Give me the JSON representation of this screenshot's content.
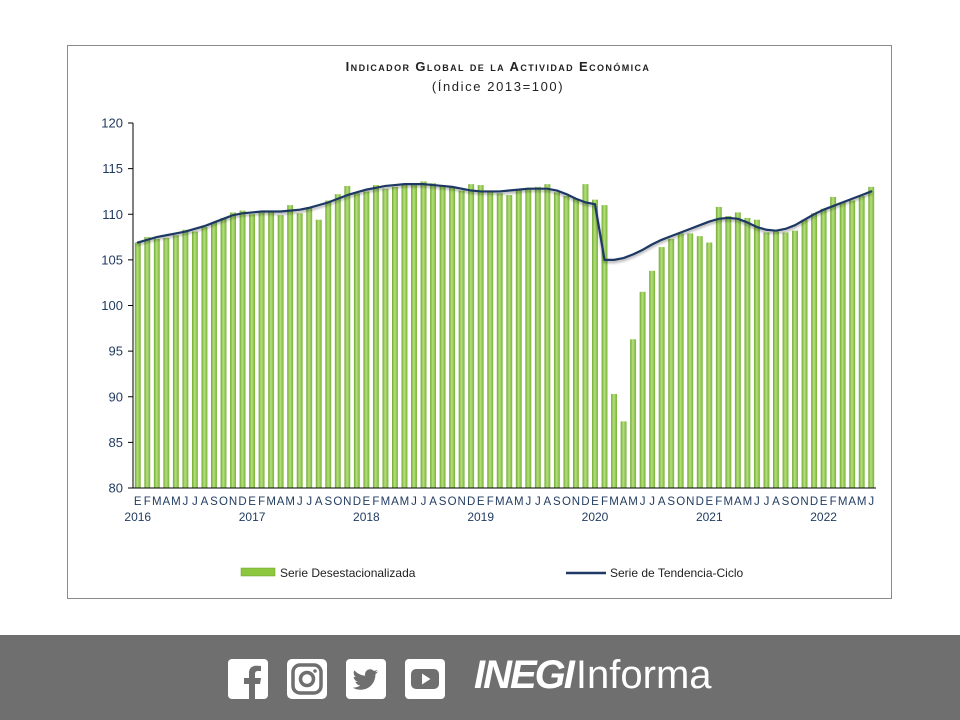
{
  "chart_data": {
    "type": "bar",
    "title": "Indicador Global de la Actividad Económica",
    "subtitle": "(Índice 2013=100)",
    "ylim": [
      80,
      120
    ],
    "yticks": [
      80,
      85,
      90,
      95,
      100,
      105,
      110,
      115,
      120
    ],
    "month_labels": [
      "E",
      "F",
      "M",
      "A",
      "M",
      "J",
      "J",
      "A",
      "S",
      "O",
      "N",
      "D"
    ],
    "years": [
      "2016",
      "2017",
      "2018",
      "2019",
      "2020",
      "2021",
      "2022"
    ],
    "legend": {
      "bar_series": "Serie Desestacionalizada",
      "line_series": "Serie de Tendencia-Ciclo",
      "placement": "bottom"
    },
    "series": [
      {
        "name": "Serie Desestacionalizada",
        "type": "bar",
        "color": "#8dc63f",
        "values": [
          106.9,
          107.5,
          107.3,
          107.4,
          107.7,
          108.3,
          108.1,
          108.6,
          109.1,
          109.6,
          110.2,
          110.4,
          110.0,
          110.3,
          110.4,
          109.9,
          111.0,
          110.1,
          110.8,
          109.4,
          111.5,
          112.2,
          113.1,
          112.3,
          112.5,
          113.2,
          112.8,
          113.0,
          113.3,
          113.4,
          113.6,
          113.4,
          113.2,
          113.0,
          112.6,
          113.3,
          113.2,
          112.4,
          112.3,
          112.1,
          112.6,
          112.9,
          113.0,
          113.3,
          112.4,
          112.0,
          111.7,
          113.3,
          111.6,
          111.0,
          90.3,
          87.3,
          96.3,
          101.5,
          103.8,
          106.4,
          107.3,
          107.9,
          107.9,
          107.6,
          106.9,
          110.8,
          109.8,
          110.2,
          109.6,
          109.4,
          108.0,
          108.1,
          108.0,
          108.2,
          109.4,
          110.1,
          110.6,
          111.9,
          111.3,
          111.5,
          112.0,
          113.0
        ]
      },
      {
        "name": "Serie de Tendencia-Ciclo",
        "type": "line",
        "color": "#1f3864",
        "values": [
          106.9,
          107.2,
          107.5,
          107.7,
          107.9,
          108.1,
          108.4,
          108.7,
          109.1,
          109.5,
          109.9,
          110.1,
          110.2,
          110.3,
          110.3,
          110.3,
          110.4,
          110.5,
          110.7,
          111.0,
          111.3,
          111.7,
          112.1,
          112.4,
          112.7,
          112.9,
          113.1,
          113.2,
          113.3,
          113.3,
          113.3,
          113.2,
          113.1,
          113.0,
          112.8,
          112.6,
          112.5,
          112.5,
          112.5,
          112.6,
          112.7,
          112.8,
          112.8,
          112.8,
          112.6,
          112.2,
          111.7,
          111.3,
          111.1,
          105.0,
          105.0,
          105.2,
          105.6,
          106.1,
          106.7,
          107.2,
          107.6,
          108.0,
          108.4,
          108.8,
          109.2,
          109.5,
          109.6,
          109.5,
          109.1,
          108.6,
          108.3,
          108.2,
          108.4,
          108.8,
          109.4,
          110.0,
          110.5,
          110.9,
          111.3,
          111.7,
          112.1,
          112.5
        ]
      }
    ]
  },
  "footer": {
    "icons": [
      "facebook-icon",
      "instagram-icon",
      "twitter-icon",
      "youtube-icon"
    ],
    "brand_bold": "INEGI",
    "brand_light": "Informa",
    "background": "#6f6f6f"
  }
}
